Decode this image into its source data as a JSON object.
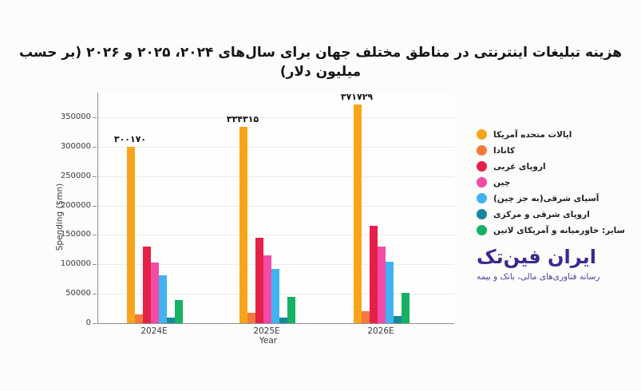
{
  "chart_data": {
    "type": "bar",
    "title": "هزینه تبلیغات اینترنتی در مناطق مختلف جهان برای سال‌های ۲۰۲۴، ۲۰۲۵ و ۲۰۲۶ (بر حسب میلیون دلار)",
    "xlabel": "Year",
    "ylabel": "Spending ($mn)",
    "categories": [
      "2024E",
      "2025E",
      "2026E"
    ],
    "yticks": [
      0,
      50000,
      100000,
      150000,
      200000,
      250000,
      300000,
      350000
    ],
    "ylim": [
      0,
      390000
    ],
    "grid": true,
    "legend_position": "right",
    "series": [
      {
        "name": "ایالات متحده آمریکا",
        "color": "#F9A51B",
        "values": [
          300170,
          334315,
          371729
        ],
        "bar_labels": [
          "۳۰۰۱۷۰",
          "۳۳۴۳۱۵",
          "۳۷۱۷۲۹"
        ]
      },
      {
        "name": "کانادا",
        "color": "#F4793B",
        "values": [
          15000,
          17000,
          20000
        ]
      },
      {
        "name": "اروپای غربی",
        "color": "#E62048",
        "values": [
          130000,
          145000,
          165000
        ]
      },
      {
        "name": "چین",
        "color": "#F34BA6",
        "values": [
          103000,
          115000,
          130000
        ]
      },
      {
        "name": "آسیای شرقی(به جز چین)",
        "color": "#41B3F2",
        "values": [
          82000,
          92000,
          105000
        ]
      },
      {
        "name": "اروپای شرقی و مرکزی",
        "color": "#17879B",
        "values": [
          9000,
          10000,
          12000
        ]
      },
      {
        "name": "سایر: خاورمیانه و آمریکای لاتین",
        "color": "#14B262",
        "values": [
          40000,
          45000,
          52000
        ]
      }
    ]
  },
  "branding": {
    "name": "ایران فین‌تک",
    "tagline": "رسانه فناوری‌های مالی، بانک و بیمه",
    "color": "#372B8F"
  }
}
